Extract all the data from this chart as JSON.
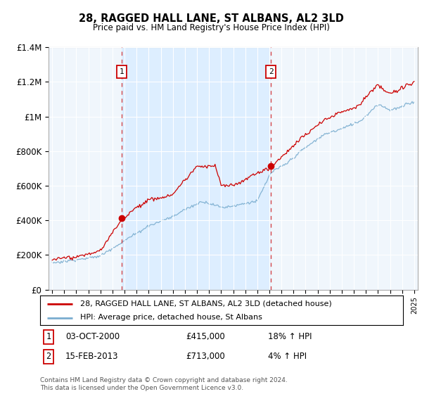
{
  "title": "28, RAGGED HALL LANE, ST ALBANS, AL2 3LD",
  "subtitle": "Price paid vs. HM Land Registry's House Price Index (HPI)",
  "legend_line1": "28, RAGGED HALL LANE, ST ALBANS, AL2 3LD (detached house)",
  "legend_line2": "HPI: Average price, detached house, St Albans",
  "sale1_date": "03-OCT-2000",
  "sale1_price": 415000,
  "sale1_hpi": "18% ↑ HPI",
  "sale2_date": "15-FEB-2013",
  "sale2_price": 713000,
  "sale2_hpi": "4% ↑ HPI",
  "footer": "Contains HM Land Registry data © Crown copyright and database right 2024.\nThis data is licensed under the Open Government Licence v3.0.",
  "red_color": "#cc0000",
  "blue_color": "#7aadcf",
  "shade_color": "#ddeeff",
  "bg_color": "#f0f6fc",
  "ylim": [
    0,
    1400000
  ],
  "yticks": [
    0,
    200000,
    400000,
    600000,
    800000,
    1000000,
    1200000,
    1400000
  ],
  "ytick_labels": [
    "£0",
    "£200K",
    "£400K",
    "£600K",
    "£800K",
    "£1M",
    "£1.2M",
    "£1.4M"
  ],
  "x_start_year": 1995,
  "x_end_year": 2025,
  "sale1_year": 2000.75,
  "sale2_year": 2013.12
}
